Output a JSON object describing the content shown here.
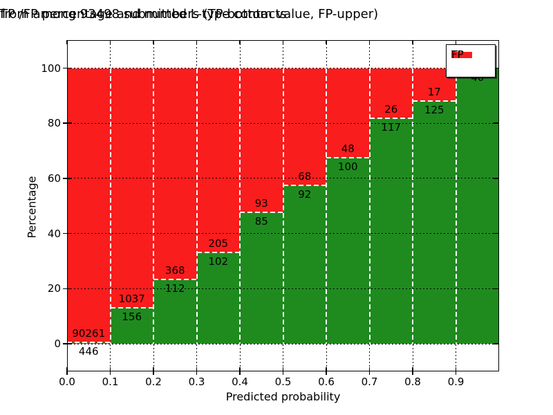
{
  "title": {
    "line1": "TP /FP percentage and numbers (TP-bottom value, FP-upper)",
    "line2": "from among 93498 submitted L-type contacts"
  },
  "axes": {
    "xlabel": "Predicted probability",
    "ylabel": "Percentage",
    "xtick_labels": [
      "0.0",
      "0.1",
      "0.2",
      "0.3",
      "0.4",
      "0.5",
      "0.6",
      "0.7",
      "0.8",
      "0.9"
    ],
    "ytick_values": [
      0,
      20,
      40,
      60,
      80,
      100
    ]
  },
  "legend": {
    "position": "upper right",
    "entries": [
      {
        "label": "TP",
        "color": "#1f8b1f"
      },
      {
        "label": "FP",
        "color": "#fa1d1d"
      }
    ]
  },
  "colors": {
    "tp_green": "#1f8b1f",
    "fp_red": "#fa1d1d",
    "grid": "#000000",
    "bar_edge": "#ffffff",
    "background": "#ffffff"
  },
  "chart_data": {
    "type": "bar",
    "stacked": true,
    "normalized": "each bin scaled to 100% (TP bottom, FP top)",
    "title": "TP /FP percentage and numbers (TP-bottom value, FP-upper) from among 93498 submitted L-type contacts",
    "xlabel": "Predicted probability",
    "ylabel": "Percentage",
    "total_submitted": 93498,
    "bin_width": 0.1,
    "bin_starts": [
      0.0,
      0.1,
      0.2,
      0.3,
      0.4,
      0.5,
      0.6,
      0.7,
      0.8,
      0.9
    ],
    "series": [
      {
        "name": "TP",
        "counts": [
          446,
          156,
          112,
          102,
          85,
          92,
          100,
          117,
          125,
          40
        ]
      },
      {
        "name": "FP",
        "counts": [
          90261,
          1037,
          368,
          205,
          93,
          68,
          48,
          26,
          17,
          0
        ]
      }
    ],
    "tp_percent": [
      0.49,
      13.08,
      23.33,
      33.22,
      47.75,
      57.5,
      67.57,
      81.82,
      88.03,
      100.0
    ],
    "xlim": [
      0.0,
      1.0
    ],
    "ylim": [
      -10,
      110
    ],
    "grid": true,
    "grid_style": "dotted black horizontal and vertical; bar edges white dashed",
    "legend_position": "upper right"
  }
}
